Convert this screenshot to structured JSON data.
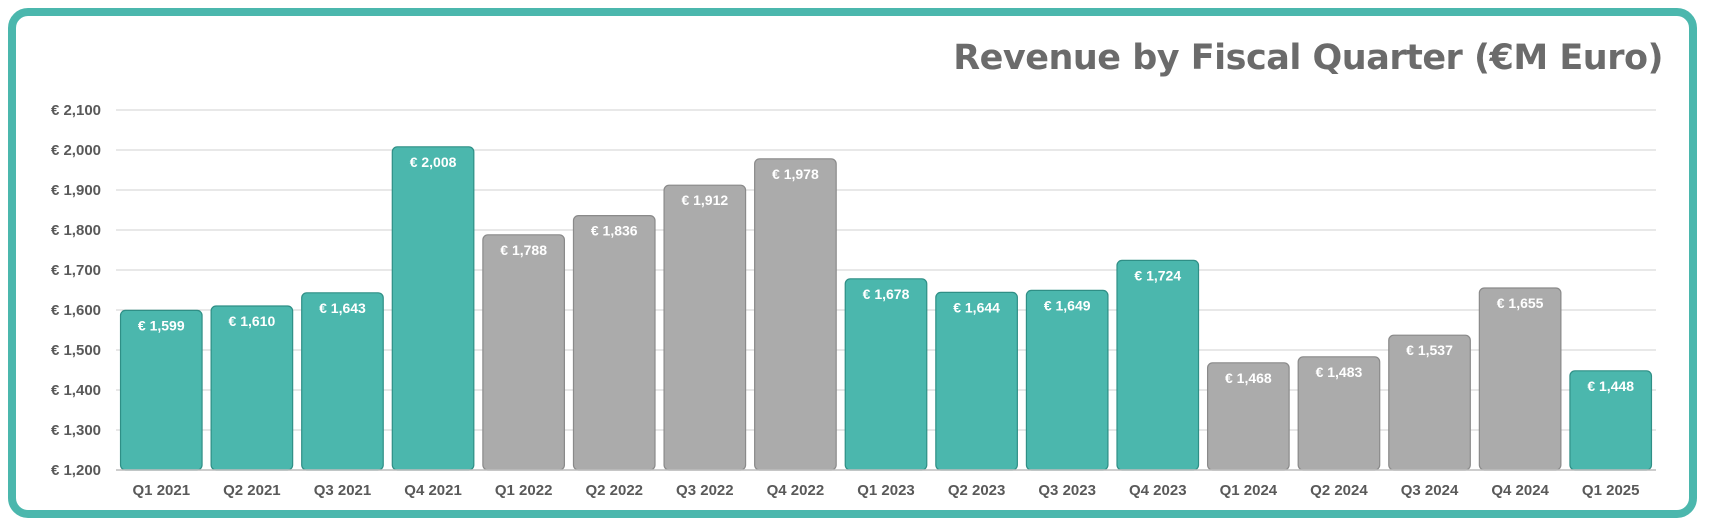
{
  "chart_data": {
    "type": "bar",
    "title": "Revenue by Fiscal Quarter (€M Euro)",
    "xlabel": "",
    "ylabel": "",
    "ylim": [
      1200,
      2100
    ],
    "yticks": [
      1200,
      1300,
      1400,
      1500,
      1600,
      1700,
      1800,
      1900,
      2000,
      2100
    ],
    "ytick_labels": [
      "€ 1,200",
      "€ 1,300",
      "€ 1,400",
      "€ 1,500",
      "€ 1,600",
      "€ 1,700",
      "€ 1,800",
      "€ 1,900",
      "€ 2,000",
      "€ 2,100"
    ],
    "grid": true,
    "legend": "none",
    "categories": [
      "Q1 2021",
      "Q2 2021",
      "Q3 2021",
      "Q4 2021",
      "Q1 2022",
      "Q2 2022",
      "Q3 2022",
      "Q4 2022",
      "Q1 2023",
      "Q2 2023",
      "Q3 2023",
      "Q4 2023",
      "Q1 2024",
      "Q2 2024",
      "Q3 2024",
      "Q4 2024",
      "Q1 2025"
    ],
    "values": [
      1599,
      1610,
      1643,
      2008,
      1788,
      1836,
      1912,
      1978,
      1678,
      1644,
      1649,
      1724,
      1468,
      1483,
      1537,
      1655,
      1448
    ],
    "data_labels": [
      "€ 1,599",
      "€ 1,610",
      "€ 1,643",
      "€ 2,008",
      "€ 1,788",
      "€ 1,836",
      "€ 1,912",
      "€ 1,978",
      "€ 1,678",
      "€ 1,644",
      "€ 1,649",
      "€ 1,724",
      "€ 1,468",
      "€ 1,483",
      "€ 1,537",
      "€ 1,655",
      "€ 1,448"
    ],
    "bar_colors": [
      "#4bb7ad",
      "#4bb7ad",
      "#4bb7ad",
      "#4bb7ad",
      "#ababab",
      "#ababab",
      "#ababab",
      "#ababab",
      "#4bb7ad",
      "#4bb7ad",
      "#4bb7ad",
      "#4bb7ad",
      "#ababab",
      "#ababab",
      "#ababab",
      "#ababab",
      "#4bb7ad"
    ]
  },
  "colors": {
    "accent": "#4bb7ad",
    "gray_bar": "#ababab",
    "title": "#6b6b6b",
    "grid": "#d9d9d9"
  }
}
